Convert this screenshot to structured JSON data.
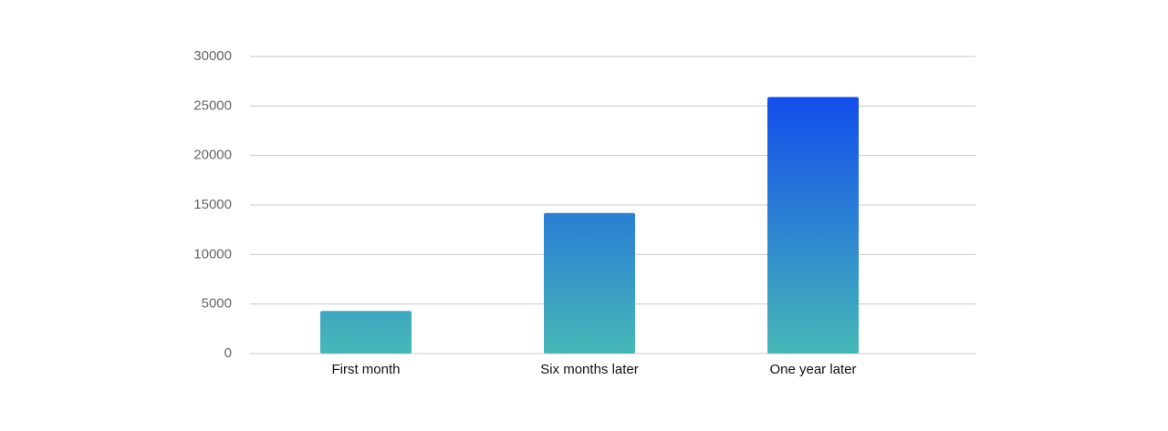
{
  "chart_data": {
    "type": "bar",
    "categories": [
      "First month",
      "Six months later",
      "One year later"
    ],
    "values": [
      4300,
      14200,
      25900
    ],
    "colors": [
      "#47b9b8",
      "#0a3cf4"
    ],
    "ylim": [
      0,
      30000
    ],
    "yticks": [
      0,
      5000,
      10000,
      15000,
      20000,
      25000,
      30000
    ],
    "grid": true
  }
}
